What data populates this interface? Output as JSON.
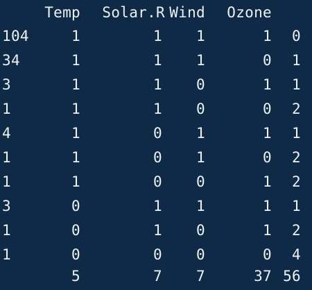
{
  "header": {
    "temp": "Temp",
    "solar": "Solar.R",
    "wind": "Wind",
    "ozone": "Ozone"
  },
  "rows": [
    {
      "label": "104",
      "temp": "1",
      "solar": "1",
      "wind": "1",
      "ozone": "1",
      "count": "0"
    },
    {
      "label": "34",
      "temp": "1",
      "solar": "1",
      "wind": "1",
      "ozone": "0",
      "count": "1"
    },
    {
      "label": "3",
      "temp": "1",
      "solar": "1",
      "wind": "0",
      "ozone": "1",
      "count": "1"
    },
    {
      "label": "1",
      "temp": "1",
      "solar": "1",
      "wind": "0",
      "ozone": "0",
      "count": "2"
    },
    {
      "label": "4",
      "temp": "1",
      "solar": "0",
      "wind": "1",
      "ozone": "1",
      "count": "1"
    },
    {
      "label": "1",
      "temp": "1",
      "solar": "0",
      "wind": "1",
      "ozone": "0",
      "count": "2"
    },
    {
      "label": "1",
      "temp": "1",
      "solar": "0",
      "wind": "0",
      "ozone": "1",
      "count": "2"
    },
    {
      "label": "3",
      "temp": "0",
      "solar": "1",
      "wind": "1",
      "ozone": "1",
      "count": "1"
    },
    {
      "label": "1",
      "temp": "0",
      "solar": "1",
      "wind": "0",
      "ozone": "1",
      "count": "2"
    },
    {
      "label": "1",
      "temp": "0",
      "solar": "0",
      "wind": "0",
      "ozone": "0",
      "count": "4"
    }
  ],
  "totals": {
    "temp": "5",
    "solar": "7",
    "wind": "7",
    "ozone": "37",
    "count": "56"
  }
}
